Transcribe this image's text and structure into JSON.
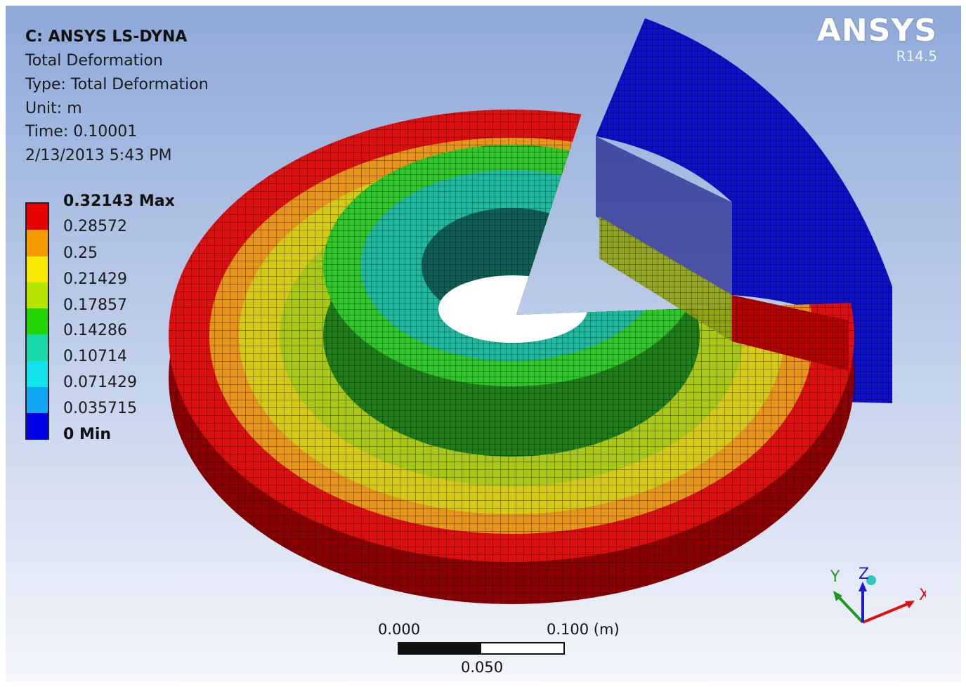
{
  "header": {
    "lines": [
      "C: ANSYS LS-DYNA",
      "Total Deformation",
      "Type: Total Deformation",
      "Unit: m",
      "Time: 0.10001",
      "2/13/2013 5:43 PM"
    ]
  },
  "logo": {
    "name": "ANSYS",
    "version": "R14.5"
  },
  "legend": {
    "labels": [
      "0.32143 Max",
      "0.28572",
      "0.25",
      "0.21429",
      "0.17857",
      "0.14286",
      "0.10714",
      "0.071429",
      "0.035715",
      "0 Min"
    ],
    "colors": [
      "#e60000",
      "#f29a00",
      "#f6e800",
      "#b6e400",
      "#22d400",
      "#19d8a6",
      "#11e2ec",
      "#10a6f2",
      "#0000e6"
    ]
  },
  "scale": {
    "left": "0.000",
    "right": "0.100 (m)",
    "middle": "0.050"
  },
  "triad": {
    "x": "X",
    "y": "Y",
    "z": "Z"
  },
  "model_colors": {
    "outer_red": "#dc0f0f",
    "orange": "#e7951a",
    "yellow": "#d6c916",
    "yellow_green": "#a9c717",
    "green": "#2fc629",
    "cyan_green": "#1fb9a0",
    "blue_segment": "#1011d8"
  }
}
